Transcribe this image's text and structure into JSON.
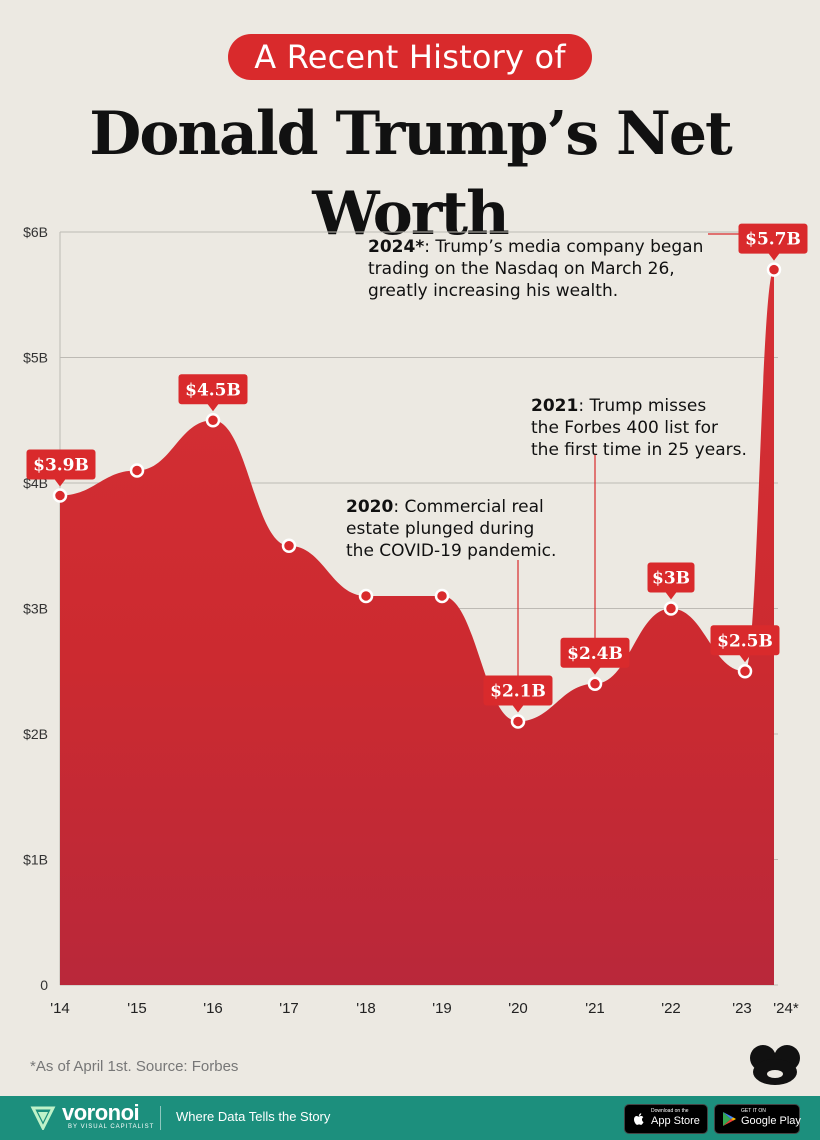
{
  "header": {
    "subtitle": "A Recent History of",
    "title": "Donald Trump’s Net Worth"
  },
  "chart_data": {
    "type": "area",
    "x": [
      "'14",
      "'15",
      "'16",
      "'17",
      "'18",
      "'19",
      "'20",
      "'21",
      "'22",
      "'23",
      "'24*"
    ],
    "y_ticks": [
      "0",
      "$1B",
      "$2B",
      "$3B",
      "$4B",
      "$5B",
      "$6B"
    ],
    "ylim": [
      0,
      6
    ],
    "grid": true,
    "series": [
      {
        "values": [
          3.9,
          4.1,
          4.5,
          3.5,
          3.1,
          3.1,
          2.1,
          2.4,
          3.0,
          2.5,
          5.7
        ]
      }
    ],
    "value_labels": [
      {
        "index": 0,
        "text": "$3.9B"
      },
      {
        "index": 2,
        "text": "$4.5B"
      },
      {
        "index": 6,
        "text": "$2.1B"
      },
      {
        "index": 7,
        "text": "$2.4B"
      },
      {
        "index": 8,
        "text": "$3B"
      },
      {
        "index": 9,
        "text": "$2.5B"
      },
      {
        "index": 10,
        "text": "$5.7B"
      }
    ],
    "annotations": [
      {
        "index": 10,
        "bold": "2024*",
        "text": ": Trump’s media company began trading on the Nasdaq on March 26, greatly increasing his wealth."
      },
      {
        "index": 7,
        "bold": "2021",
        "text": ": Trump misses the Forbes 400 list for the first time in 25 years."
      },
      {
        "index": 6,
        "bold": "2020",
        "text": ": Commercial real estate plunged during the COVID-19 pandemic."
      }
    ],
    "colors": {
      "area": "#cf2a2f",
      "label_box": "#d92a2c",
      "marker_stroke": "#ffffff",
      "annotation_line": "#d92a2c"
    }
  },
  "footnote": "*As of April 1st. Source: Forbes",
  "footer": {
    "brand": "voronoi",
    "brand_sub": "BY VISUAL CAPITALIST",
    "tagline": "Where Data Tells the Story",
    "app_store_small": "Download on the",
    "app_store": "App Store",
    "google_play_small": "GET IT ON",
    "google_play": "Google Play"
  },
  "icons": [
    "voronoi-logo-icon",
    "visual-capitalist-bug-icon",
    "apple-icon",
    "google-play-icon"
  ]
}
